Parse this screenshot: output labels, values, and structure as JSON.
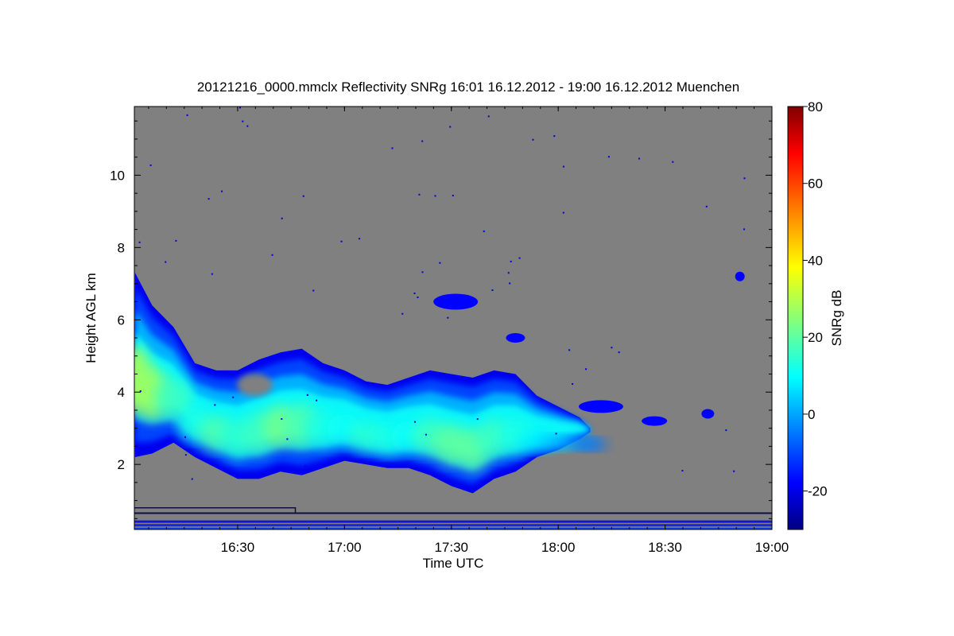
{
  "chart_data": {
    "type": "heatmap",
    "title": "20121216_0000.mmclx Reflectivity SNRg   16:01 16.12.2012 - 19:00 16.12.2012 Muenchen",
    "xlabel": "Time UTC",
    "ylabel": "Height AGL km",
    "colorbar_label": "SNRg dB",
    "x_range": [
      "16:01",
      "19:00"
    ],
    "xlim": [
      16.0167,
      19.0
    ],
    "ylim": [
      0.2,
      11.9
    ],
    "x_ticks": [
      {
        "value": 16.5,
        "label": "16:30"
      },
      {
        "value": 17.0,
        "label": "17:00"
      },
      {
        "value": 17.5,
        "label": "17:30"
      },
      {
        "value": 18.0,
        "label": "18:00"
      },
      {
        "value": 18.5,
        "label": "18:30"
      },
      {
        "value": 19.0,
        "label": "19:00"
      }
    ],
    "y_ticks": [
      {
        "value": 2,
        "label": "2"
      },
      {
        "value": 4,
        "label": "4"
      },
      {
        "value": 6,
        "label": "6"
      },
      {
        "value": 8,
        "label": "8"
      },
      {
        "value": 10,
        "label": "10"
      }
    ],
    "colorbar_range": [
      -30,
      80
    ],
    "colorbar_ticks": [
      {
        "value": -20,
        "label": "-20"
      },
      {
        "value": 0,
        "label": "0"
      },
      {
        "value": 20,
        "label": "20"
      },
      {
        "value": 40,
        "label": "40"
      },
      {
        "value": 60,
        "label": "60"
      },
      {
        "value": 80,
        "label": "80"
      }
    ],
    "colormap": "jet",
    "background_color": "#808080",
    "cloud_layer": {
      "description_times": [
        16.02,
        16.1,
        16.2,
        16.3,
        16.4,
        16.5,
        16.6,
        16.7,
        16.8,
        16.9,
        17.0,
        17.1,
        17.2,
        17.3,
        17.4,
        17.5,
        17.6,
        17.7,
        17.8,
        17.9,
        18.0,
        18.1,
        18.15
      ],
      "top_km": [
        7.3,
        6.4,
        5.8,
        4.8,
        4.6,
        4.6,
        4.9,
        5.1,
        5.2,
        4.8,
        4.6,
        4.3,
        4.2,
        4.4,
        4.6,
        4.5,
        4.4,
        4.6,
        4.5,
        3.9,
        3.6,
        3.3,
        3.0
      ],
      "base_km": [
        2.2,
        2.3,
        2.6,
        2.2,
        1.9,
        1.6,
        1.6,
        1.8,
        1.7,
        1.9,
        2.1,
        2.0,
        1.9,
        1.9,
        1.7,
        1.4,
        1.2,
        1.6,
        1.8,
        2.2,
        2.4,
        2.7,
        2.9
      ],
      "core_snr_db": [
        30,
        28,
        18,
        14,
        20,
        16,
        18,
        24,
        20,
        14,
        12,
        16,
        14,
        12,
        18,
        22,
        22,
        18,
        14,
        10,
        6,
        2,
        -4
      ]
    }
  }
}
